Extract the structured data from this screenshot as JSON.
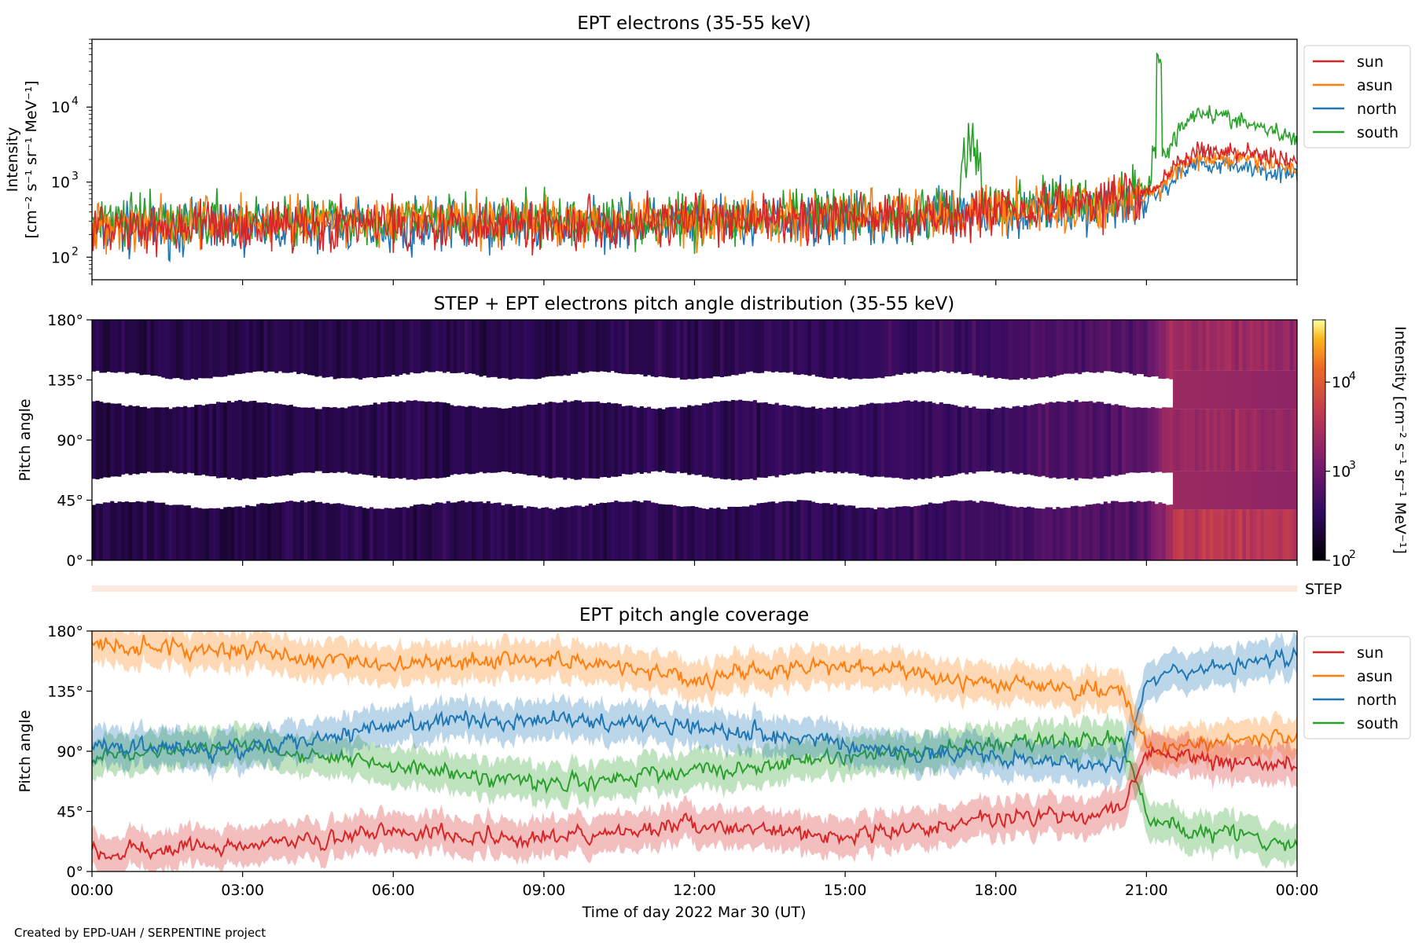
{
  "figure": {
    "credit": "Created by EPD-UAH / SERPENTINE project",
    "xlabel": "Time of day 2022 Mar 30 (UT)",
    "xticks": [
      "00:00",
      "03:00",
      "06:00",
      "09:00",
      "12:00",
      "15:00",
      "18:00",
      "21:00",
      "00:00"
    ]
  },
  "panel1": {
    "title": "EPT electrons (35-55 keV)",
    "ylabel_line1": "Intensity",
    "ylabel_line2": "[cm⁻² s⁻¹ sr⁻¹ MeV⁻¹]",
    "yticks": {
      "base": "10",
      "exp": [
        "2",
        "3",
        "4"
      ]
    }
  },
  "panel2": {
    "title": "STEP + EPT electrons pitch angle distribution (35-55 keV)",
    "ylabel": "Pitch angle",
    "yticks": [
      "0°",
      "45°",
      "90°",
      "135°",
      "180°"
    ],
    "colorbar_label": "Intensity [cm⁻² s⁻¹ sr⁻¹ MeV⁻¹]",
    "colorbar_ticks": {
      "base": "10",
      "exp": [
        "2",
        "3",
        "4"
      ]
    },
    "step_label": "STEP"
  },
  "panel3": {
    "title": "EPT pitch angle coverage",
    "ylabel": "Pitch angle",
    "yticks": [
      "0°",
      "45°",
      "90°",
      "135°",
      "180°"
    ]
  },
  "legend": {
    "sun": "sun",
    "asun": "asun",
    "north": "north",
    "south": "south"
  },
  "colors": {
    "sun": "#d62728",
    "asun": "#ff7f0e",
    "north": "#1f77b4",
    "south": "#2ca02c"
  },
  "chart_data": [
    {
      "type": "line",
      "title": "EPT electrons (35-55 keV)",
      "xlabel": "",
      "ylabel": "Intensity [cm⁻² s⁻¹ sr⁻¹ MeV⁻¹]",
      "yscale": "log",
      "ylim": [
        50,
        80000
      ],
      "xlim": [
        "2022-03-30 00:00",
        "2022-03-31 00:00"
      ],
      "legend_position": "upper right, outside",
      "x": [
        "00:00",
        "02:00",
        "04:00",
        "06:00",
        "08:00",
        "10:00",
        "12:00",
        "14:00",
        "16:00",
        "17:30",
        "18:00",
        "20:00",
        "21:00",
        "21:15",
        "21:30",
        "22:00",
        "23:00",
        "24:00"
      ],
      "series": [
        {
          "name": "sun",
          "values": [
            250,
            260,
            270,
            270,
            280,
            290,
            300,
            320,
            350,
            380,
            450,
            550,
            700,
            900,
            1500,
            2500,
            2500,
            1800
          ]
        },
        {
          "name": "asun",
          "values": [
            280,
            290,
            300,
            300,
            300,
            310,
            320,
            330,
            360,
            380,
            430,
            480,
            650,
            800,
            1300,
            2000,
            2000,
            1500
          ]
        },
        {
          "name": "north",
          "values": [
            220,
            250,
            260,
            270,
            260,
            270,
            280,
            300,
            330,
            350,
            400,
            450,
            600,
            700,
            1000,
            1800,
            1600,
            1200
          ]
        },
        {
          "name": "south",
          "values": [
            300,
            300,
            310,
            310,
            300,
            310,
            320,
            330,
            380,
            3000,
            500,
            550,
            800,
            45000,
            3000,
            9000,
            6000,
            3500
          ]
        }
      ]
    },
    {
      "type": "heatmap",
      "title": "STEP + EPT electrons pitch angle distribution (35-55 keV)",
      "ylabel": "Pitch angle",
      "ylim": [
        0,
        180
      ],
      "colorbar": {
        "label": "Intensity [cm⁻² s⁻¹ sr⁻¹ MeV⁻¹]",
        "scale": "log",
        "range": [
          100,
          50000
        ],
        "colormap": "inferno"
      },
      "x": [
        "00:00",
        "03:00",
        "06:00",
        "09:00",
        "12:00",
        "15:00",
        "18:00",
        "21:00",
        "21:30",
        "24:00"
      ],
      "values_typical": [
        250,
        260,
        270,
        280,
        300,
        330,
        420,
        700,
        2500,
        2000
      ]
    },
    {
      "type": "line",
      "title": "EPT pitch angle coverage",
      "xlabel": "Time of day 2022 Mar 30 (UT)",
      "ylabel": "Pitch angle",
      "ylim": [
        0,
        180
      ],
      "legend_position": "upper right, outside",
      "x": [
        "00:00",
        "03:00",
        "06:00",
        "09:00",
        "12:00",
        "15:00",
        "18:00",
        "20:30",
        "21:00",
        "22:00",
        "24:00"
      ],
      "series": [
        {
          "name": "sun",
          "values": [
            15,
            20,
            30,
            25,
            35,
            25,
            40,
            45,
            90,
            85,
            80
          ]
        },
        {
          "name": "asun",
          "values": [
            170,
            165,
            155,
            160,
            145,
            155,
            140,
            135,
            90,
            95,
            100
          ]
        },
        {
          "name": "north",
          "values": [
            95,
            90,
            110,
            115,
            110,
            95,
            85,
            80,
            145,
            150,
            160
          ]
        },
        {
          "name": "south",
          "values": [
            85,
            95,
            80,
            65,
            75,
            85,
            95,
            100,
            40,
            30,
            20
          ]
        }
      ]
    }
  ]
}
